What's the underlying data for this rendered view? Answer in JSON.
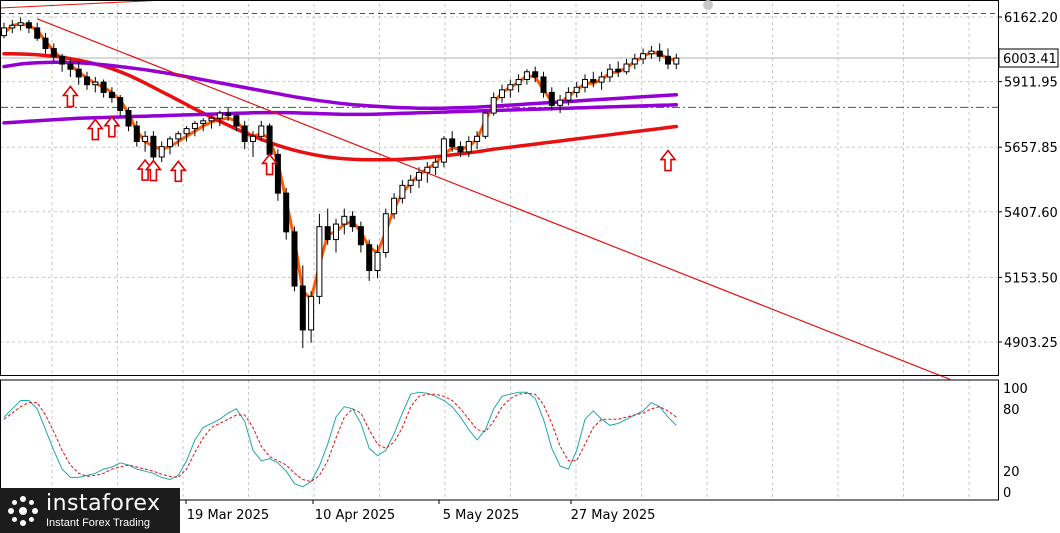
{
  "chart_data": [
    {
      "type": "candlestick",
      "price_labels": [
        "6162.20",
        "5911.95",
        "5657.85",
        "5407.60",
        "5153.50",
        "4903.25"
      ],
      "price_ticks": [
        6162.2,
        5911.95,
        5657.85,
        5407.6,
        5153.5,
        4903.25
      ],
      "current_price": "6003.41",
      "ylim": [
        4800,
        6200
      ],
      "date_labels": [
        "19 Mar 2025",
        "10 Apr 2025",
        "5 May 2025",
        "27 May 2025"
      ],
      "ohlc": [
        [
          6090,
          6140,
          6080,
          6120
        ],
        [
          6120,
          6150,
          6100,
          6130
        ],
        [
          6130,
          6160,
          6110,
          6140
        ],
        [
          6140,
          6150,
          6100,
          6120
        ],
        [
          6120,
          6140,
          6070,
          6080
        ],
        [
          6080,
          6100,
          6020,
          6040
        ],
        [
          6040,
          6060,
          5990,
          6010
        ],
        [
          6010,
          6020,
          5950,
          5980
        ],
        [
          5980,
          6000,
          5930,
          5960
        ],
        [
          5960,
          5990,
          5900,
          5930
        ],
        [
          5930,
          5950,
          5880,
          5900
        ],
        [
          5900,
          5930,
          5870,
          5910
        ],
        [
          5910,
          5920,
          5850,
          5870
        ],
        [
          5870,
          5890,
          5830,
          5850
        ],
        [
          5850,
          5860,
          5780,
          5800
        ],
        [
          5800,
          5810,
          5720,
          5740
        ],
        [
          5740,
          5760,
          5660,
          5680
        ],
        [
          5680,
          5720,
          5640,
          5700
        ],
        [
          5700,
          5720,
          5600,
          5620
        ],
        [
          5620,
          5680,
          5600,
          5660
        ],
        [
          5660,
          5700,
          5630,
          5690
        ],
        [
          5690,
          5720,
          5660,
          5710
        ],
        [
          5710,
          5740,
          5680,
          5730
        ],
        [
          5730,
          5760,
          5700,
          5750
        ],
        [
          5750,
          5770,
          5720,
          5760
        ],
        [
          5760,
          5780,
          5730,
          5770
        ],
        [
          5770,
          5800,
          5740,
          5790
        ],
        [
          5790,
          5810,
          5760,
          5780
        ],
        [
          5780,
          5790,
          5720,
          5740
        ],
        [
          5740,
          5760,
          5650,
          5680
        ],
        [
          5680,
          5720,
          5620,
          5700
        ],
        [
          5700,
          5760,
          5680,
          5740
        ],
        [
          5740,
          5750,
          5600,
          5630
        ],
        [
          5630,
          5650,
          5450,
          5480
        ],
        [
          5480,
          5500,
          5300,
          5330
        ],
        [
          5330,
          5350,
          5100,
          5120
        ],
        [
          5120,
          5200,
          4880,
          4950
        ],
        [
          4950,
          5100,
          4900,
          5080
        ],
        [
          5080,
          5400,
          5050,
          5350
        ],
        [
          5350,
          5420,
          5280,
          5300
        ],
        [
          5300,
          5380,
          5250,
          5360
        ],
        [
          5360,
          5420,
          5320,
          5390
        ],
        [
          5390,
          5410,
          5330,
          5350
        ],
        [
          5350,
          5370,
          5250,
          5280
        ],
        [
          5280,
          5300,
          5140,
          5180
        ],
        [
          5180,
          5280,
          5150,
          5250
        ],
        [
          5250,
          5420,
          5230,
          5400
        ],
        [
          5400,
          5480,
          5380,
          5460
        ],
        [
          5460,
          5530,
          5440,
          5510
        ],
        [
          5510,
          5550,
          5480,
          5530
        ],
        [
          5530,
          5580,
          5500,
          5560
        ],
        [
          5560,
          5600,
          5520,
          5580
        ],
        [
          5580,
          5620,
          5550,
          5600
        ],
        [
          5600,
          5700,
          5580,
          5690
        ],
        [
          5690,
          5720,
          5640,
          5660
        ],
        [
          5660,
          5680,
          5620,
          5640
        ],
        [
          5640,
          5700,
          5620,
          5680
        ],
        [
          5680,
          5720,
          5650,
          5700
        ],
        [
          5700,
          5800,
          5690,
          5790
        ],
        [
          5790,
          5870,
          5780,
          5850
        ],
        [
          5850,
          5900,
          5830,
          5880
        ],
        [
          5880,
          5920,
          5850,
          5900
        ],
        [
          5900,
          5940,
          5870,
          5920
        ],
        [
          5920,
          5960,
          5900,
          5950
        ],
        [
          5950,
          5970,
          5910,
          5930
        ],
        [
          5930,
          5950,
          5850,
          5870
        ],
        [
          5870,
          5890,
          5800,
          5820
        ],
        [
          5820,
          5860,
          5790,
          5840
        ],
        [
          5840,
          5890,
          5820,
          5870
        ],
        [
          5870,
          5910,
          5850,
          5890
        ],
        [
          5890,
          5940,
          5870,
          5920
        ],
        [
          5920,
          5950,
          5890,
          5910
        ],
        [
          5910,
          5950,
          5880,
          5930
        ],
        [
          5930,
          5980,
          5910,
          5960
        ],
        [
          5960,
          5990,
          5930,
          5950
        ],
        [
          5950,
          6000,
          5940,
          5980
        ],
        [
          5980,
          6020,
          5960,
          6000
        ],
        [
          6000,
          6040,
          5980,
          6020
        ],
        [
          6020,
          6050,
          6000,
          6030
        ],
        [
          6030,
          6060,
          5990,
          6010
        ],
        [
          6010,
          6040,
          5960,
          5980
        ],
        [
          5980,
          6020,
          5960,
          6003
        ]
      ],
      "series": [
        {
          "color": "#ff5a00",
          "values": [
            6100,
            6130,
            6135,
            6130,
            6110,
            6070,
            6030,
            6000,
            5975,
            5950,
            5925,
            5905,
            5890,
            5870,
            5840,
            5790,
            5720,
            5680,
            5660,
            5650,
            5660,
            5680,
            5700,
            5720,
            5740,
            5755,
            5765,
            5770,
            5760,
            5720,
            5700,
            5710,
            5690,
            5600,
            5450,
            5300,
            5100,
            5070,
            5200,
            5320,
            5330,
            5360,
            5370,
            5330,
            5270,
            5250,
            5330,
            5420,
            5480,
            5520,
            5550,
            5575,
            5595,
            5630,
            5655,
            5650,
            5660,
            5690,
            5760,
            5830,
            5870,
            5890,
            5910,
            5935,
            5930,
            5880,
            5835,
            5830,
            5855,
            5880,
            5905,
            5905,
            5920,
            5945,
            5950,
            5965,
            5990,
            6010,
            6025,
            6020,
            6000,
            5995
          ]
        },
        {
          "color": "#e81010",
          "values": [
            6020,
            6020,
            6019,
            6018,
            6016,
            6013,
            6010,
            6006,
            6001,
            5995,
            5988,
            5980,
            5972,
            5962,
            5950,
            5937,
            5922,
            5906,
            5890,
            5873,
            5857,
            5840,
            5823,
            5806,
            5790,
            5774,
            5758,
            5743,
            5728,
            5714,
            5700,
            5688,
            5676,
            5665,
            5655,
            5646,
            5638,
            5631,
            5625,
            5620,
            5616,
            5613,
            5611,
            5610,
            5609,
            5609,
            5609,
            5610,
            5611,
            5613,
            5615,
            5618,
            5621,
            5624,
            5628,
            5632,
            5636,
            5640,
            5645,
            5650,
            5654,
            5658,
            5662,
            5666,
            5670,
            5674,
            5678,
            5682,
            5686,
            5690,
            5694,
            5698,
            5702,
            5706,
            5710,
            5714,
            5718,
            5722,
            5726,
            5730,
            5734,
            5738
          ]
        },
        {
          "color": "#9400d3",
          "values": [
            5970,
            5975,
            5980,
            5983,
            5985,
            5986,
            5987,
            5987,
            5986,
            5985,
            5983,
            5980,
            5977,
            5974,
            5970,
            5966,
            5962,
            5958,
            5953,
            5948,
            5943,
            5937,
            5931,
            5925,
            5919,
            5913,
            5907,
            5901,
            5895,
            5889,
            5883,
            5877,
            5871,
            5865,
            5859,
            5853,
            5848,
            5843,
            5838,
            5834,
            5830,
            5826,
            5823,
            5820,
            5818,
            5816,
            5814,
            5812,
            5811,
            5810,
            5809,
            5809,
            5809,
            5809,
            5810,
            5811,
            5812,
            5813,
            5815,
            5817,
            5819,
            5821,
            5823,
            5825,
            5827,
            5829,
            5831,
            5833,
            5835,
            5837,
            5839,
            5841,
            5843,
            5845,
            5847,
            5849,
            5851,
            5853,
            5855,
            5857,
            5859,
            5861
          ]
        },
        {
          "color": "#9400d3",
          "values": [
            5752,
            5754,
            5756,
            5758,
            5760,
            5762,
            5764,
            5766,
            5768,
            5770,
            5771,
            5772,
            5773,
            5774,
            5775,
            5776,
            5777,
            5778,
            5779,
            5780,
            5781,
            5782,
            5783,
            5784,
            5785,
            5786,
            5787,
            5788,
            5789,
            5790,
            5791,
            5792,
            5792,
            5792,
            5792,
            5791,
            5790,
            5789,
            5788,
            5787,
            5786,
            5785,
            5785,
            5785,
            5785,
            5786,
            5787,
            5788,
            5789,
            5790,
            5791,
            5792,
            5793,
            5794,
            5795,
            5796,
            5797,
            5798,
            5799,
            5800,
            5801,
            5802,
            5803,
            5804,
            5805,
            5806,
            5807,
            5808,
            5809,
            5810,
            5811,
            5812,
            5813,
            5814,
            5815,
            5816,
            5817,
            5818,
            5819,
            5820,
            5821,
            5822
          ]
        }
      ],
      "horizontal_levels": [
        {
          "value": 6176,
          "color": "#cc2200",
          "style": "dash"
        },
        {
          "value": 5812,
          "color": "#1a7a1a",
          "style": "dashdot"
        }
      ],
      "trendline": {
        "from": [
          4,
          6155
        ],
        "to": [
          114,
          4758
        ],
        "color": "#e81010"
      },
      "arrows": [
        {
          "index": 8,
          "value": 5893
        },
        {
          "index": 11,
          "value": 5765
        },
        {
          "index": 13,
          "value": 5776
        },
        {
          "index": 17,
          "value": 5608
        },
        {
          "index": 18,
          "value": 5606
        },
        {
          "index": 21,
          "value": 5603
        },
        {
          "index": 32,
          "value": 5630
        },
        {
          "index": 80,
          "value": 5645
        }
      ]
    },
    {
      "type": "line",
      "ylim": [
        0,
        100
      ],
      "ticks": [
        "100",
        "80",
        "20",
        "0"
      ],
      "tick_values": [
        100,
        80,
        20,
        0
      ],
      "series": [
        {
          "color": "#20a8a8",
          "style": "solid",
          "values": [
            72,
            80,
            88,
            88,
            80,
            60,
            40,
            22,
            14,
            14,
            16,
            18,
            22,
            24,
            28,
            26,
            22,
            20,
            18,
            14,
            12,
            16,
            30,
            50,
            62,
            66,
            70,
            76,
            80,
            68,
            40,
            30,
            32,
            28,
            20,
            8,
            5,
            10,
            25,
            46,
            72,
            82,
            80,
            66,
            42,
            35,
            40,
            56,
            76,
            94,
            96,
            95,
            92,
            88,
            82,
            72,
            60,
            50,
            60,
            80,
            92,
            94,
            96,
            96,
            90,
            70,
            42,
            25,
            22,
            40,
            70,
            78,
            70,
            64,
            66,
            70,
            74,
            78,
            86,
            82,
            72,
            64
          ]
        },
        {
          "color": "#e01010",
          "style": "dash",
          "values": [
            70,
            76,
            82,
            86,
            86,
            74,
            58,
            40,
            26,
            18,
            15,
            16,
            18,
            22,
            24,
            26,
            24,
            22,
            20,
            17,
            15,
            14,
            22,
            38,
            52,
            62,
            66,
            70,
            74,
            74,
            62,
            44,
            34,
            30,
            26,
            18,
            12,
            10,
            16,
            30,
            52,
            72,
            80,
            76,
            60,
            46,
            42,
            48,
            62,
            82,
            92,
            94,
            94,
            92,
            88,
            80,
            70,
            60,
            58,
            68,
            82,
            90,
            94,
            95,
            94,
            84,
            66,
            44,
            30,
            30,
            46,
            62,
            70,
            70,
            70,
            72,
            74,
            76,
            80,
            82,
            78,
            72
          ]
        }
      ]
    }
  ],
  "watermark": {
    "brand": "instaforex",
    "tagline": "Instant Forex Trading"
  }
}
